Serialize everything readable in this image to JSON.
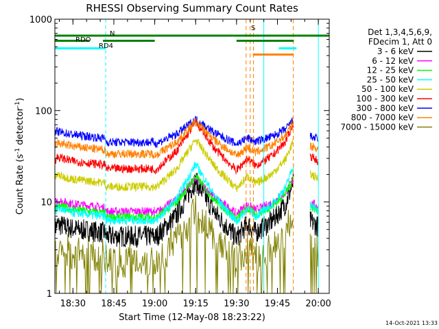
{
  "chart_data": {
    "type": "line",
    "title": "RHESSI Observing Summary Count Rates",
    "xlabel": "Start Time (12-May-08 18:23:22)",
    "ylabel_main": "Count Rate (s",
    "ylabel_sup1": "-1",
    "ylabel_mid": " detector",
    "ylabel_sup2": "-1",
    "ylabel_end": ")",
    "y_scale": "log",
    "ylim": [
      1,
      1000
    ],
    "xlim_minutes": [
      23.37,
      124
    ],
    "x_ticks": [
      {
        "label": "18:30",
        "minute": 30
      },
      {
        "label": "18:45",
        "minute": 45
      },
      {
        "label": "19:00",
        "minute": 60
      },
      {
        "label": "19:15",
        "minute": 75
      },
      {
        "label": "19:30",
        "minute": 90
      },
      {
        "label": "19:45",
        "minute": 105
      },
      {
        "label": "20:00",
        "minute": 120
      }
    ],
    "y_ticks": [
      {
        "label": "1",
        "value": 1
      },
      {
        "label": "10",
        "value": 10
      },
      {
        "label": "100",
        "value": 100
      },
      {
        "label": "1000",
        "value": 1000
      }
    ],
    "legend_header": [
      "Det 1,3,4,5,6,9,",
      "FDecim 1, Att 0"
    ],
    "legend_placement": "right",
    "series": [
      {
        "name": "3 - 6 keV",
        "color": "#000000",
        "base": 4.0,
        "peak": 17
      },
      {
        "name": "6 - 12 keV",
        "color": "#ff00ff",
        "base": 7.5,
        "peak": 18
      },
      {
        "name": "12 - 25 keV",
        "color": "#00ff00",
        "base": 6.5,
        "peak": 19
      },
      {
        "name": "25 - 50 keV",
        "color": "#00ffff",
        "base": 6.0,
        "peak": 26
      },
      {
        "name": "50 - 100 keV",
        "color": "#cccc00",
        "base": 14,
        "peak": 48
      },
      {
        "name": "100 - 300 keV",
        "color": "#ff0000",
        "base": 22,
        "peak": 75
      },
      {
        "name": "300 - 800 keV",
        "color": "#0000ff",
        "base": 43,
        "peak": 80
      },
      {
        "name": "800 - 7000 keV",
        "color": "#ff8000",
        "base": 32,
        "peak": 76
      },
      {
        "name": "7000 - 15000 keV",
        "color": "#808000",
        "base": 2.2,
        "peak": 8
      }
    ],
    "flags": [
      {
        "label": "N",
        "color": "#00ffff",
        "segments": [
          [
            23.37,
            42
          ],
          [
            105.5,
            112
          ]
        ]
      },
      {
        "label": "S",
        "color": "#ff8000",
        "segments": [
          [
            96,
            111
          ]
        ]
      },
      {
        "label": "RDO",
        "color": "#008000",
        "segments": [
          [
            23.37,
            36
          ],
          [
            41,
            60
          ],
          [
            90,
            111
          ]
        ]
      },
      {
        "label": "RD4",
        "color": "#008000",
        "segments": [
          [
            23.37,
            60
          ],
          [
            60,
            89
          ],
          [
            89,
            112
          ],
          [
            112,
            124
          ]
        ]
      }
    ],
    "v_lines_cyan": [
      42,
      100,
      120
    ],
    "v_lines_orange": [
      93.5,
      95.0,
      96.2,
      110.8
    ],
    "footer_date": "14-Oct-2021 13:33"
  }
}
